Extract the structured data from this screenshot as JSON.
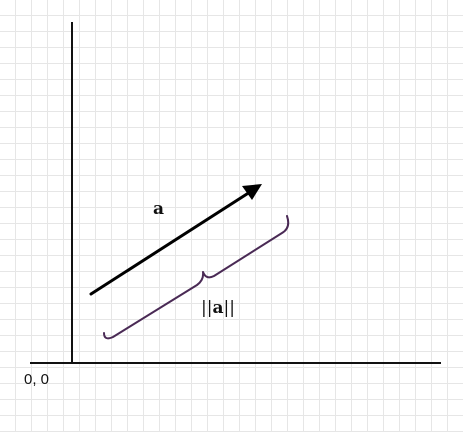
{
  "diagram": {
    "origin_label": "0, 0",
    "vector_label": "a",
    "magnitude_label": {
      "left_bars": "||",
      "vector": "a",
      "right_bars": "||"
    }
  },
  "colors": {
    "axis": "#111111",
    "vector": "#000000",
    "brace": "#4a2a55",
    "grid": "#e6e6e6",
    "background": "#ffffff"
  }
}
